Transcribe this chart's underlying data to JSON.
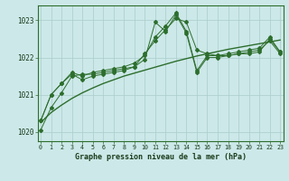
{
  "title": "Graphe pression niveau de la mer (hPa)",
  "bg_color": "#cce8e8",
  "grid_color": "#aacccc",
  "line_color": "#2d6e2d",
  "ylim": [
    1019.75,
    1023.4
  ],
  "xlim": [
    -0.3,
    23.3
  ],
  "yticks": [
    1020,
    1021,
    1022,
    1023
  ],
  "xticks": [
    0,
    1,
    2,
    3,
    4,
    5,
    6,
    7,
    8,
    9,
    10,
    11,
    12,
    13,
    14,
    15,
    16,
    17,
    18,
    19,
    20,
    21,
    22,
    23
  ],
  "series1": [
    1020.05,
    1020.65,
    1021.05,
    1021.5,
    1021.55,
    1021.55,
    1021.6,
    1021.65,
    1021.7,
    1021.75,
    1022.1,
    1022.45,
    1022.75,
    1023.05,
    1022.95,
    1022.2,
    1022.1,
    1022.05,
    1022.05,
    1022.1,
    1022.1,
    1022.15,
    1022.5,
    1022.15
  ],
  "series2": [
    1020.3,
    1021.0,
    1021.3,
    1021.55,
    1021.4,
    1021.5,
    1021.55,
    1021.6,
    1021.65,
    1021.75,
    1021.95,
    1022.95,
    1022.7,
    1023.15,
    1022.65,
    1021.6,
    1022.0,
    1022.0,
    1022.05,
    1022.1,
    1022.15,
    1022.2,
    1022.45,
    1022.1
  ],
  "series3": [
    1020.3,
    1021.0,
    1021.3,
    1021.6,
    1021.5,
    1021.6,
    1021.65,
    1021.7,
    1021.75,
    1021.85,
    1022.05,
    1022.55,
    1022.85,
    1023.2,
    1022.7,
    1021.65,
    1022.05,
    1022.05,
    1022.1,
    1022.15,
    1022.2,
    1022.25,
    1022.55,
    1022.15
  ],
  "series_linear": [
    1020.25,
    1020.52,
    1020.72,
    1020.9,
    1021.05,
    1021.18,
    1021.3,
    1021.4,
    1021.5,
    1021.58,
    1021.66,
    1021.74,
    1021.82,
    1021.9,
    1021.97,
    1022.04,
    1022.1,
    1022.16,
    1022.22,
    1022.27,
    1022.32,
    1022.37,
    1022.42,
    1022.47
  ]
}
